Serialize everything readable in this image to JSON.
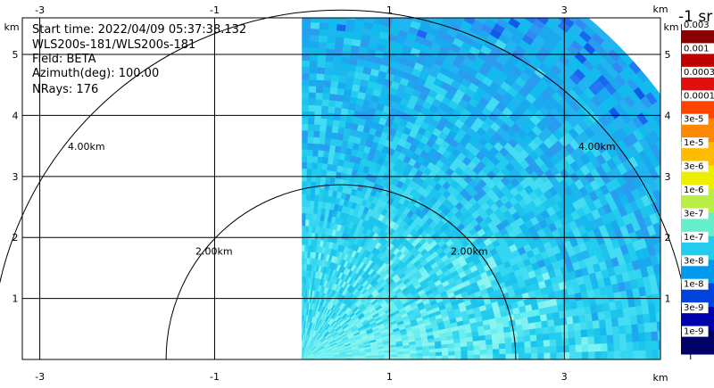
{
  "info": {
    "start_time": "Start time: 2022/04/09 05:37:38.132",
    "instrument": "WLS200s-181/WLS200s-181",
    "field": "Field: BETA",
    "azimuth": "Azimuth(deg): 100.00",
    "nrays": "NRays: 176"
  },
  "axes": {
    "unit": "km",
    "x_ticks": [
      "-3",
      "-1",
      "1",
      "3"
    ],
    "y_ticks": [
      "1",
      "2",
      "3",
      "4",
      "5"
    ],
    "x_tick_values": [
      -3,
      -1,
      1,
      3
    ],
    "y_tick_values": [
      1,
      2,
      3,
      4,
      5
    ],
    "x_range": [
      -3.2,
      4.1
    ],
    "y_range": [
      0,
      5.6
    ]
  },
  "range_rings": [
    {
      "radius_km": 2,
      "label": "2.00km"
    },
    {
      "radius_km": 4,
      "label": "4.00km"
    }
  ],
  "sector": {
    "start_deg": 0,
    "end_deg": 90,
    "max_range_km": 5.1
  },
  "colorbar": {
    "title": "-1 sr",
    "labels": [
      "0.003",
      "0.001",
      "0.0003",
      "0.0001",
      "3e-5",
      "1e-5",
      "3e-6",
      "1e-6",
      "3e-7",
      "1e-7",
      "3e-8",
      "1e-8",
      "3e-9",
      "1e-9"
    ],
    "colors": [
      "#8b0000",
      "#c00000",
      "#e01010",
      "#ff4400",
      "#ff8800",
      "#ffbb00",
      "#eeee00",
      "#bbee44",
      "#66eecc",
      "#22ccee",
      "#0099ee",
      "#0044dd",
      "#0000aa",
      "#000066"
    ]
  }
}
